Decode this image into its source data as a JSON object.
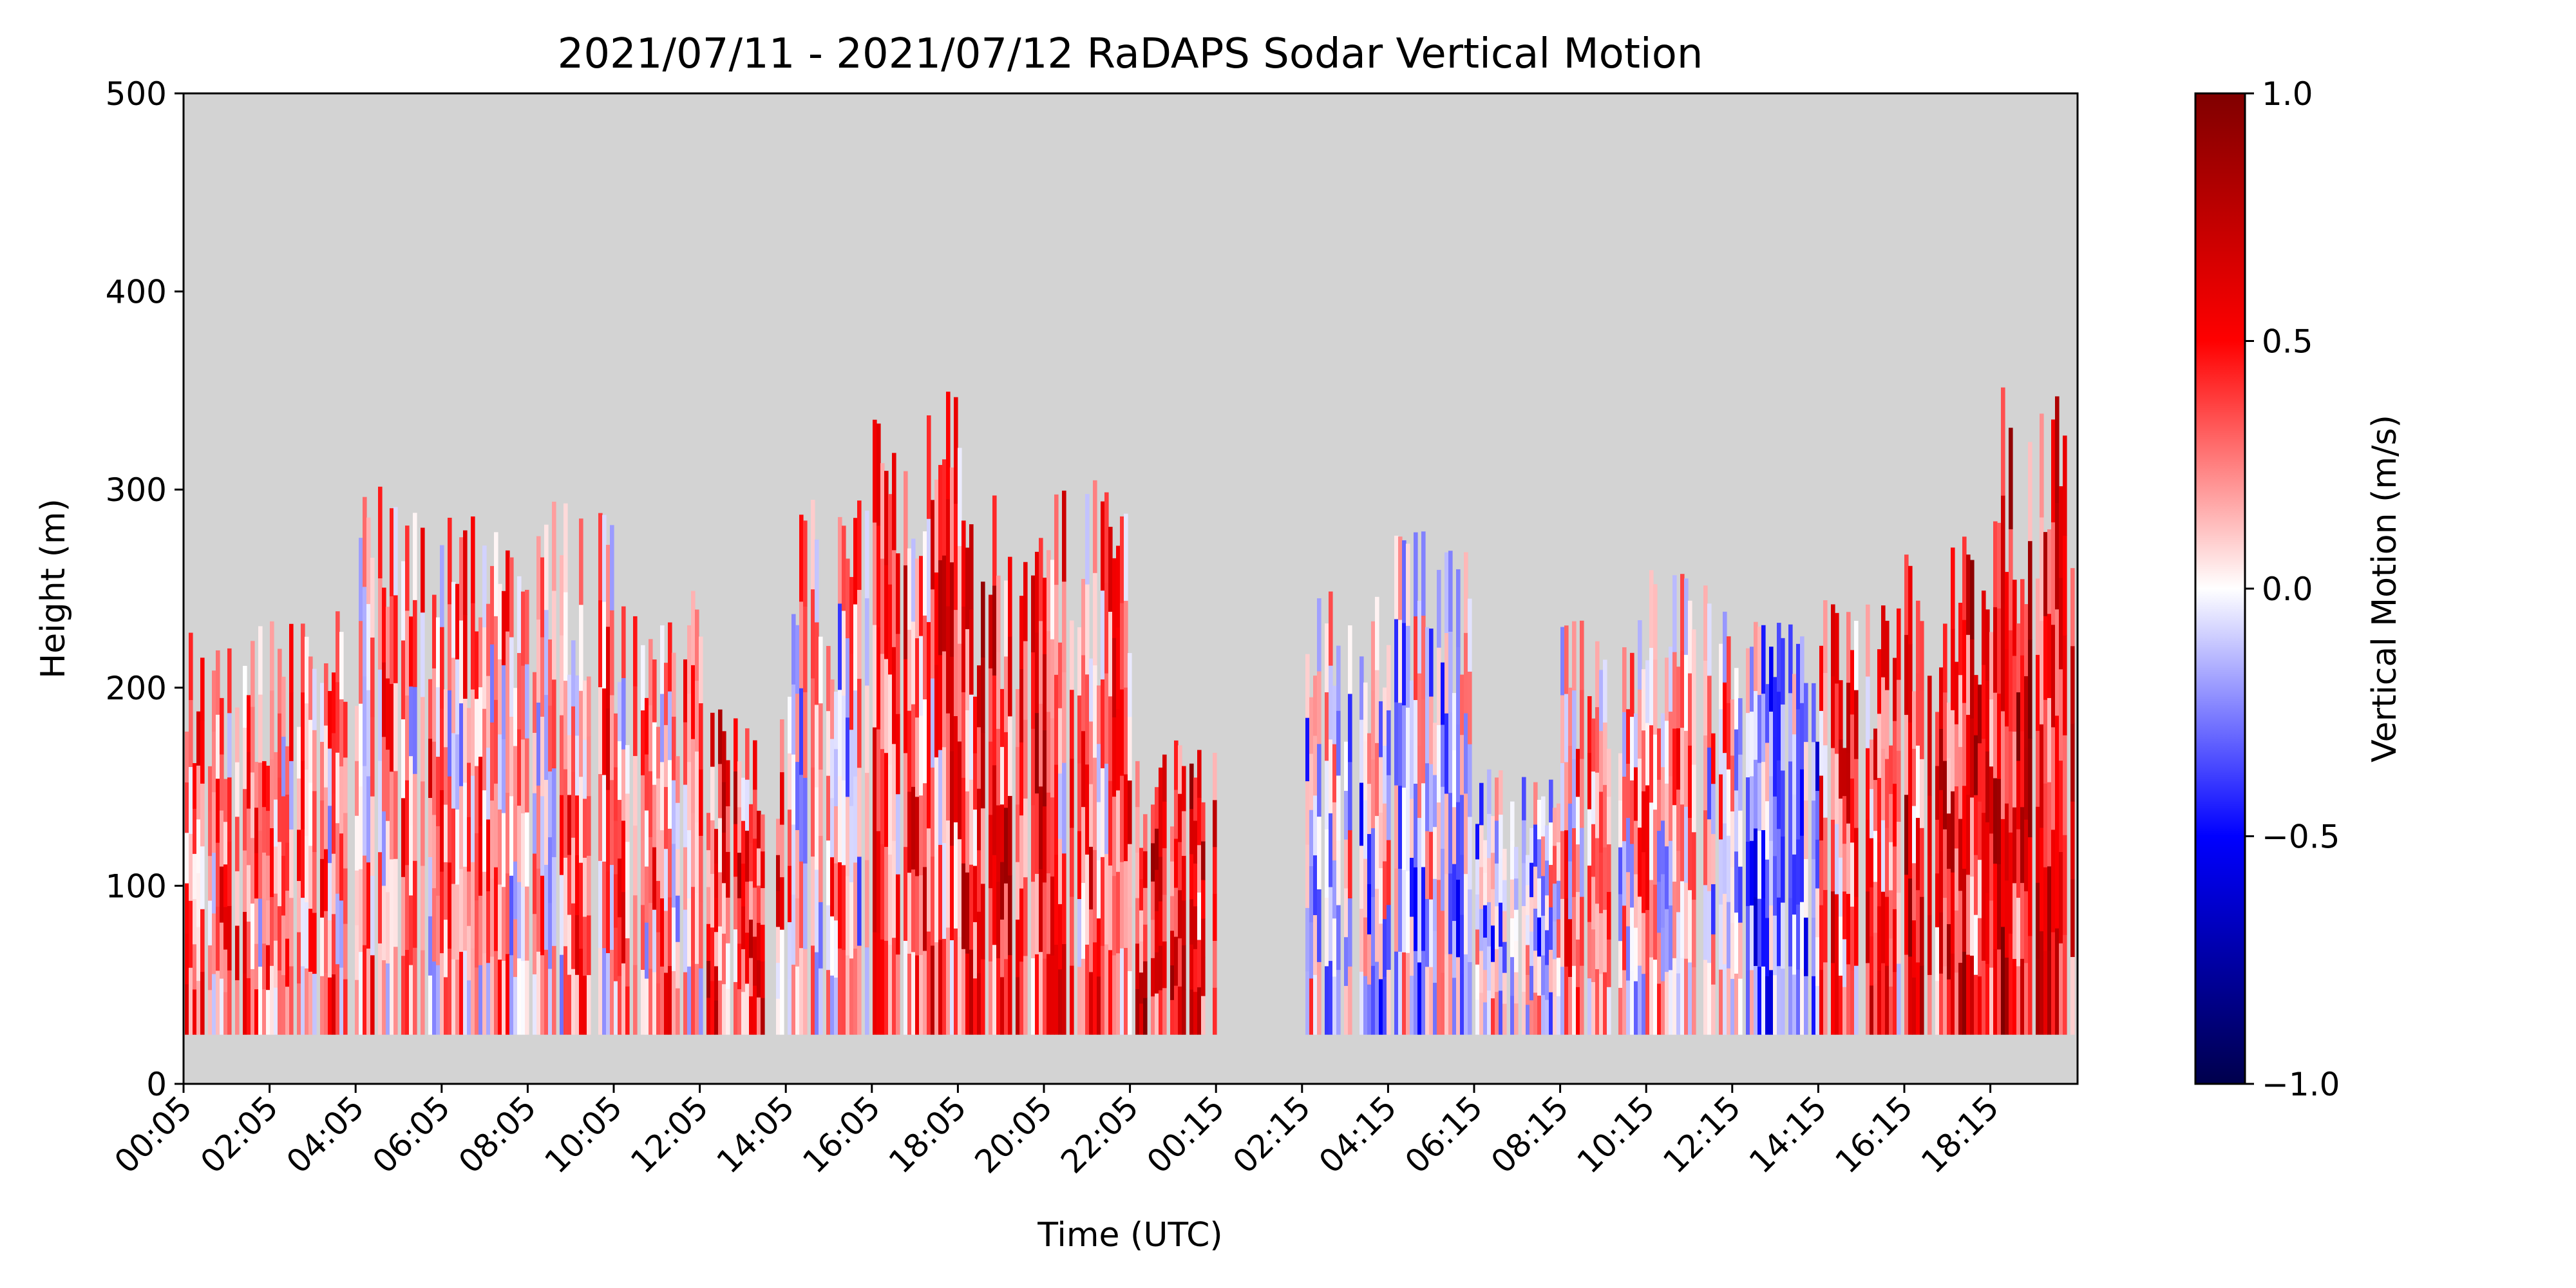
{
  "chart_data": {
    "type": "heatmap",
    "title": "2021/07/11 - 2021/07/12 RaDAPS Sodar Vertical Motion",
    "xlabel": "Time (UTC)",
    "ylabel": "Height (m)",
    "ylim": [
      0,
      500
    ],
    "yticks": [
      0,
      100,
      200,
      300,
      400,
      500
    ],
    "xticks": [
      "00:05",
      "02:05",
      "04:05",
      "06:05",
      "08:05",
      "10:05",
      "12:05",
      "14:05",
      "16:05",
      "18:05",
      "20:05",
      "22:05",
      "00:15",
      "02:15",
      "04:15",
      "06:15",
      "08:15",
      "10:15",
      "12:15",
      "14:15",
      "16:15",
      "18:15"
    ],
    "missing_color": "#d3d3d3",
    "lowest_level_m": 25,
    "colorbar": {
      "label": "Vertical Motion (m/s)",
      "colormap": "seismic",
      "range": [
        -1.0,
        1.0
      ],
      "ticks": [
        "1.0",
        "0.5",
        "0.0",
        "−0.5",
        "−1.0"
      ],
      "tick_values": [
        1.0,
        0.5,
        0.0,
        -0.5,
        -1.0
      ]
    },
    "series": [
      {
        "period": "00:05-02:05",
        "top_height_m": 235,
        "mean_vertical_motion_ms": 0.25
      },
      {
        "period": "02:05-04:05",
        "top_height_m": 240,
        "mean_vertical_motion_ms": 0.2
      },
      {
        "period": "04:05-06:05",
        "top_height_m": 310,
        "mean_vertical_motion_ms": 0.2
      },
      {
        "period": "06:05-08:05",
        "top_height_m": 290,
        "mean_vertical_motion_ms": 0.15
      },
      {
        "period": "08:05-10:05",
        "top_height_m": 310,
        "mean_vertical_motion_ms": 0.2
      },
      {
        "period": "10:05-12:05",
        "top_height_m": 250,
        "mean_vertical_motion_ms": 0.2
      },
      {
        "period": "12:05-14:05",
        "top_height_m": 190,
        "mean_vertical_motion_ms": 0.4
      },
      {
        "period": "14:05-16:05",
        "top_height_m": 295,
        "mean_vertical_motion_ms": 0.1
      },
      {
        "period": "16:05-18:05",
        "top_height_m": 350,
        "mean_vertical_motion_ms": 0.35
      },
      {
        "period": "18:05-20:05",
        "top_height_m": 300,
        "mean_vertical_motion_ms": 0.45
      },
      {
        "period": "20:05-22:05",
        "top_height_m": 305,
        "mean_vertical_motion_ms": 0.3
      },
      {
        "period": "22:05-00:15",
        "top_height_m": 175,
        "mean_vertical_motion_ms": 0.5
      },
      {
        "period": "00:15-02:15",
        "top_height_m": null,
        "mean_vertical_motion_ms": null
      },
      {
        "period": "02:15-04:15",
        "top_height_m": 250,
        "mean_vertical_motion_ms": -0.05
      },
      {
        "period": "04:15-06:15",
        "top_height_m": 280,
        "mean_vertical_motion_ms": -0.1
      },
      {
        "period": "06:15-08:15",
        "top_height_m": 160,
        "mean_vertical_motion_ms": -0.05
      },
      {
        "period": "08:15-10:15",
        "top_height_m": 235,
        "mean_vertical_motion_ms": 0.15
      },
      {
        "period": "10:15-12:15",
        "top_height_m": 265,
        "mean_vertical_motion_ms": 0.1
      },
      {
        "period": "12:15-14:15",
        "top_height_m": 235,
        "mean_vertical_motion_ms": -0.2
      },
      {
        "period": "14:15-16:15",
        "top_height_m": 250,
        "mean_vertical_motion_ms": 0.35
      },
      {
        "period": "16:15-18:15",
        "top_height_m": 280,
        "mean_vertical_motion_ms": 0.45
      },
      {
        "period": "18:15-20:00",
        "top_height_m": 355,
        "mean_vertical_motion_ms": 0.55
      }
    ]
  }
}
